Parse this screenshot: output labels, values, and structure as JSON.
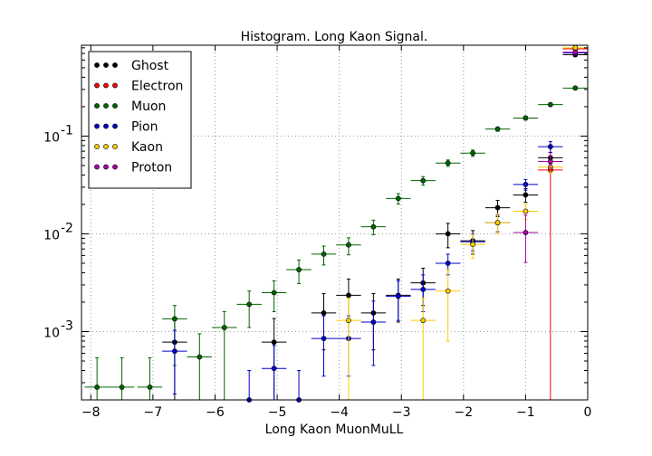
{
  "chart_data": {
    "type": "scatter",
    "title": "Histogram. Long Kaon Signal.",
    "xlabel": "Long Kaon MuonMuLL",
    "ylabel": "",
    "xlim": [
      -8.15,
      0
    ],
    "ylim": [
      0.0002,
      0.85
    ],
    "yscale": "log",
    "grid": true,
    "legend_position": "top-left",
    "x_ticks": [
      -8,
      -7,
      -6,
      -5,
      -4,
      -3,
      -2,
      -1,
      0
    ],
    "x_tick_labels": [
      "−8",
      "−7",
      "−6",
      "−5",
      "−4",
      "−3",
      "−2",
      "−1",
      "0"
    ],
    "y_ticks": [
      0.001,
      0.01,
      0.1
    ],
    "y_tick_labels": [
      {
        "base": "10",
        "exp": "-3"
      },
      {
        "base": "10",
        "exp": "-2"
      },
      {
        "base": "10",
        "exp": "-1"
      }
    ],
    "series": [
      {
        "name": "Ghost",
        "color": "#000000",
        "points": [
          {
            "x": -6.65,
            "y": 0.00078,
            "yerr": [
              0.00058,
              0.00058
            ]
          },
          {
            "x": -5.05,
            "y": 0.00078,
            "yerr": [
              0.00058,
              0.00058
            ]
          },
          {
            "x": -4.25,
            "y": 0.00155,
            "yerr": [
              0.0009,
              0.0009
            ]
          },
          {
            "x": -3.85,
            "y": 0.00235,
            "yerr": [
              0.0011,
              0.0011
            ]
          },
          {
            "x": -3.45,
            "y": 0.00155,
            "yerr": [
              0.0009,
              0.0009
            ]
          },
          {
            "x": -3.05,
            "y": 0.00235,
            "yerr": [
              0.0011,
              0.0011
            ]
          },
          {
            "x": -2.65,
            "y": 0.00315,
            "yerr": [
              0.0013,
              0.0013
            ]
          },
          {
            "x": -2.25,
            "y": 0.01,
            "yerr": [
              0.0028,
              0.0028
            ]
          },
          {
            "x": -1.85,
            "y": 0.0085,
            "yerr": [
              0.0023,
              0.0023
            ]
          },
          {
            "x": -1.45,
            "y": 0.0185,
            "yerr": [
              0.0035,
              0.0035
            ]
          },
          {
            "x": -1.0,
            "y": 0.025,
            "yerr": [
              0.004,
              0.004
            ]
          },
          {
            "x": -0.6,
            "y": 0.06,
            "yerr": [
              0.008,
              0.008
            ]
          },
          {
            "x": -0.2,
            "y": 0.68,
            "yerr": [
              0.03,
              0.03
            ]
          }
        ]
      },
      {
        "name": "Electron",
        "color": "#ff0000",
        "points": [
          {
            "x": -0.6,
            "y": 0.045,
            "yerr": [
              0.0448,
              0.03
            ]
          },
          {
            "x": -0.2,
            "y": 0.78,
            "yerr": [
              0.05,
              0.05
            ]
          }
        ]
      },
      {
        "name": "Muon",
        "color": "#006400",
        "points": [
          {
            "x": -7.9,
            "y": 0.00027,
            "yerr": [
              0.0002,
              0.00027
            ]
          },
          {
            "x": -7.5,
            "y": 0.00027,
            "yerr": [
              0.0002,
              0.00027
            ]
          },
          {
            "x": -7.05,
            "y": 0.00027,
            "yerr": [
              0.0002,
              0.00027
            ]
          },
          {
            "x": -6.65,
            "y": 0.00135,
            "yerr": [
              0.0009,
              0.0005
            ]
          },
          {
            "x": -6.25,
            "y": 0.00055,
            "yerr": [
              0.0004,
              0.0004
            ]
          },
          {
            "x": -5.85,
            "y": 0.0011,
            "yerr": [
              0.0009,
              0.0005
            ]
          },
          {
            "x": -5.45,
            "y": 0.0019,
            "yerr": [
              0.0008,
              0.0007
            ]
          },
          {
            "x": -5.05,
            "y": 0.0025,
            "yerr": [
              0.0009,
              0.0008
            ]
          },
          {
            "x": -4.65,
            "y": 0.0043,
            "yerr": [
              0.0012,
              0.0011
            ]
          },
          {
            "x": -4.25,
            "y": 0.0062,
            "yerr": [
              0.0014,
              0.0013
            ]
          },
          {
            "x": -3.85,
            "y": 0.0077,
            "yerr": [
              0.0016,
              0.0014
            ]
          },
          {
            "x": -3.45,
            "y": 0.0118,
            "yerr": [
              0.002,
              0.002
            ]
          },
          {
            "x": -3.05,
            "y": 0.023,
            "yerr": [
              0.0028,
              0.0028
            ]
          },
          {
            "x": -2.65,
            "y": 0.035,
            "yerr": [
              0.0035,
              0.0035
            ]
          },
          {
            "x": -2.25,
            "y": 0.053,
            "yerr": [
              0.004,
              0.004
            ]
          },
          {
            "x": -1.85,
            "y": 0.067,
            "yerr": [
              0.005,
              0.005
            ]
          },
          {
            "x": -1.45,
            "y": 0.118,
            "yerr": [
              0.006,
              0.006
            ]
          },
          {
            "x": -1.0,
            "y": 0.153,
            "yerr": [
              0.007,
              0.007
            ]
          },
          {
            "x": -0.6,
            "y": 0.21,
            "yerr": [
              0.008,
              0.008
            ]
          },
          {
            "x": -0.2,
            "y": 0.31,
            "yerr": [
              0.01,
              0.01
            ]
          }
        ]
      },
      {
        "name": "Pion",
        "color": "#0000cc",
        "points": [
          {
            "x": -6.65,
            "y": 0.00063,
            "yerr": [
              0.0004,
              0.0004
            ]
          },
          {
            "x": -5.45,
            "y": 0.0002,
            "yerr": [
              0.00019,
              0.0002
            ]
          },
          {
            "x": -5.05,
            "y": 0.00042,
            "yerr": [
              0.0003,
              0.0003
            ]
          },
          {
            "x": -4.65,
            "y": 0.0002,
            "yerr": [
              0.00019,
              0.0002
            ]
          },
          {
            "x": -4.25,
            "y": 0.00085,
            "yerr": [
              0.0005,
              0.0006
            ]
          },
          {
            "x": -3.85,
            "y": 0.00085,
            "yerr": [
              0.0005,
              0.0006
            ]
          },
          {
            "x": -3.45,
            "y": 0.00125,
            "yerr": [
              0.0008,
              0.0008
            ]
          },
          {
            "x": -3.05,
            "y": 0.0023,
            "yerr": [
              0.001,
              0.001
            ]
          },
          {
            "x": -2.65,
            "y": 0.0027,
            "yerr": [
              0.0011,
              0.0011
            ]
          },
          {
            "x": -2.25,
            "y": 0.005,
            "yerr": [
              0.0012,
              0.0012
            ]
          },
          {
            "x": -1.85,
            "y": 0.0083,
            "yerr": [
              0.0016,
              0.0016
            ]
          },
          {
            "x": -1.45,
            "y": 0.013,
            "yerr": [
              0.0025,
              0.0025
            ]
          },
          {
            "x": -1.0,
            "y": 0.032,
            "yerr": [
              0.004,
              0.004
            ]
          },
          {
            "x": -0.6,
            "y": 0.078,
            "yerr": [
              0.01,
              0.01
            ]
          },
          {
            "x": -0.2,
            "y": 0.71,
            "yerr": [
              0.04,
              0.04
            ]
          }
        ]
      },
      {
        "name": "Kaon",
        "color": "#ffcc00",
        "points": [
          {
            "x": -3.85,
            "y": 0.0013,
            "yerr": [
              0.00125,
              0.0009
            ]
          },
          {
            "x": -2.65,
            "y": 0.0013,
            "yerr": [
              0.00125,
              0.0009
            ]
          },
          {
            "x": -2.25,
            "y": 0.0026,
            "yerr": [
              0.0018,
              0.0017
            ]
          },
          {
            "x": -1.85,
            "y": 0.0078,
            "yerr": [
              0.0022,
              0.002
            ]
          },
          {
            "x": -1.45,
            "y": 0.013,
            "yerr": [
              0.003,
              0.003
            ]
          },
          {
            "x": -1.0,
            "y": 0.017,
            "yerr": [
              0.003,
              0.003
            ]
          },
          {
            "x": -0.6,
            "y": 0.048,
            "yerr": [
              0.006,
              0.006
            ]
          },
          {
            "x": -0.2,
            "y": 0.8,
            "yerr": [
              0.04,
              0.04
            ]
          }
        ]
      },
      {
        "name": "Proton",
        "color": "#aa00aa",
        "points": [
          {
            "x": -1.0,
            "y": 0.0103,
            "yerr": [
              0.0052,
              0.0052
            ]
          },
          {
            "x": -0.6,
            "y": 0.055,
            "yerr": [
              0.008,
              0.008
            ]
          },
          {
            "x": -0.2,
            "y": 0.72,
            "yerr": [
              0.04,
              0.04
            ]
          }
        ]
      }
    ],
    "bin_half_width": 0.2
  }
}
